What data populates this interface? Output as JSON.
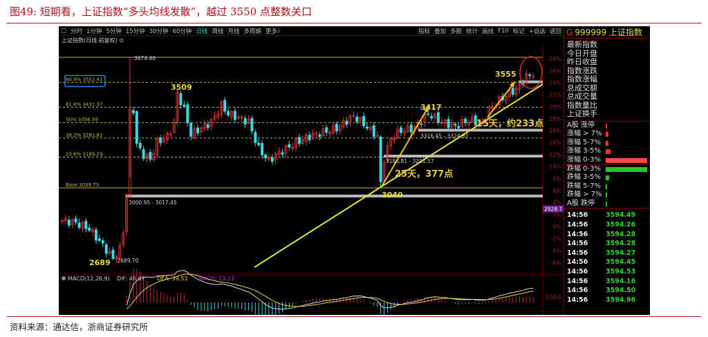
{
  "header": {
    "title": "图49:  短期看，上证指数“多头均线发散”，越过 3550 点整数关口"
  },
  "footer": {
    "source": "资料来源：通达信，浙商证券研究所"
  },
  "toolbar": {
    "left": [
      "□",
      "分时",
      "1分钟",
      "5分钟",
      "15分钟",
      "30分钟",
      "60分钟",
      "日线",
      "周线",
      "月线",
      "多周期",
      "更多〉"
    ],
    "active": "日线",
    "right": [
      "指标",
      "叠加",
      "多股",
      "统计",
      "画线",
      "F10",
      "标记",
      "+自选",
      "返回"
    ]
  },
  "chart_title": "上证指数(日线 前复权) ⊙",
  "colors": {
    "up": "#e0393b",
    "down": "#3cd6e6",
    "annot": "#e8d84a",
    "arrow": "#f0c020",
    "fib": "#c8b830",
    "macd_dif": "#dddddd",
    "macd_dea": "#e8d84a",
    "macd_bar": "#c03030",
    "highlight": "#1e88e5",
    "circle": "#d32f2f",
    "axis": "#c01010"
  },
  "chart_data": {
    "type": "candlestick",
    "note_values": "approximate daily closes (index points) anchored by trading-day index",
    "close_anchors": [
      [
        0,
        2880
      ],
      [
        4,
        2870
      ],
      [
        8,
        2840
      ],
      [
        12,
        2760
      ],
      [
        15,
        2695
      ],
      [
        17,
        2740
      ],
      [
        18,
        2830
      ],
      [
        19,
        3010
      ],
      [
        20,
        3550
      ],
      [
        21,
        3420
      ],
      [
        22,
        3250
      ],
      [
        24,
        3200
      ],
      [
        26,
        3180
      ],
      [
        28,
        3260
      ],
      [
        31,
        3290
      ],
      [
        33,
        3350
      ],
      [
        34,
        3500
      ],
      [
        36,
        3420
      ],
      [
        38,
        3300
      ],
      [
        41,
        3330
      ],
      [
        44,
        3360
      ],
      [
        47,
        3440
      ],
      [
        49,
        3400
      ],
      [
        52,
        3380
      ],
      [
        55,
        3360
      ],
      [
        58,
        3230
      ],
      [
        61,
        3170
      ],
      [
        63,
        3200
      ],
      [
        66,
        3230
      ],
      [
        69,
        3260
      ],
      [
        73,
        3290
      ],
      [
        77,
        3310
      ],
      [
        81,
        3330
      ],
      [
        86,
        3390
      ],
      [
        89,
        3350
      ],
      [
        93,
        3290
      ],
      [
        94,
        3060
      ],
      [
        95,
        3180
      ],
      [
        97,
        3280
      ],
      [
        100,
        3320
      ],
      [
        104,
        3330
      ],
      [
        108,
        3400
      ],
      [
        112,
        3360
      ],
      [
        116,
        3340
      ],
      [
        120,
        3370
      ],
      [
        124,
        3350
      ],
      [
        126,
        3420
      ],
      [
        128,
        3450
      ],
      [
        131,
        3490
      ],
      [
        134,
        3520
      ],
      [
        137,
        3580
      ],
      [
        139,
        3594
      ]
    ],
    "ylim": [
      2689.7,
      3674.4
    ],
    "right_axis_ticks": [
      "28%",
      "26%",
      "24%",
      "22%",
      "20%",
      "18%",
      "16%",
      "14%",
      "12%",
      "10%",
      "8%",
      "6%",
      "4%",
      "2%",
      "0%",
      "-2%",
      "-4%",
      "-6%"
    ],
    "axis_marker": "2928.7",
    "macd_axis_tick": "100.0",
    "fib_levels": [
      {
        "label": "80.9% 3552.41",
        "value": 3552.41,
        "highlight": true
      },
      {
        "label": "61.8% 3431.37",
        "value": 3431.37
      },
      {
        "label": "50% 3356.59",
        "value": 3356.59
      },
      {
        "label": "38.2% 3281.81",
        "value": 3281.81
      },
      {
        "label": "23.6% 3189.29",
        "value": 3189.29
      },
      {
        "label": "Base 3039.73",
        "value": 3039.73,
        "solid": true
      }
    ],
    "high": {
      "label": "3674.40",
      "value": 3674.4
    },
    "low": {
      "label": "2689.70",
      "value": 2689.7
    },
    "gaps": [
      {
        "label": "3000.95 - 3017.45",
        "value": 3009
      },
      {
        "label": "3186.81 - 3201.57",
        "value": 3194
      },
      {
        "label": "3316.45 - 3324.81",
        "value": 3320
      }
    ],
    "annotations": [
      "3509",
      "3417",
      "3555",
      "3040",
      "2689",
      "15天，约233点",
      "25天，377点"
    ],
    "macd": {
      "label": "MACD(12,26,9)",
      "dif": "DIF: 46.07",
      "dea": "DEA: 39.51",
      "macd": "MACD: 13.13"
    }
  },
  "panel": {
    "code": "999999",
    "name": "上证指数",
    "g": "G",
    "fields": [
      "最新指数",
      "今日开盘",
      "昨日收盘",
      "指数涨跌",
      "指数涨幅",
      "总成交额",
      "总成交量",
      "指数量比",
      "上证换手"
    ],
    "breadth": [
      {
        "label": "A股 涨停",
        "value": 0.02,
        "color": "#e33"
      },
      {
        "label": "涨幅 > 7%",
        "value": 0.06,
        "color": "#e33"
      },
      {
        "label": "涨幅 5-7%",
        "value": 0.06,
        "color": "#e33"
      },
      {
        "label": "涨幅 3-5%",
        "value": 0.12,
        "color": "#e33"
      },
      {
        "label": "涨幅 0-3%",
        "value": 1.0,
        "color": "#f24a4a"
      },
      {
        "label": "跌幅 0-3%",
        "value": 1.0,
        "color": "#22c922"
      },
      {
        "label": "跌幅 3-5%",
        "value": 0.08,
        "color": "#22c922"
      },
      {
        "label": "跌幅 5-7%",
        "value": 0.04,
        "color": "#22c922"
      },
      {
        "label": "跌幅 > 7%",
        "value": 0.02,
        "color": "#22c922"
      },
      {
        "label": "A股 跌停",
        "value": 0.02,
        "color": "#22c922"
      }
    ],
    "ticks": [
      {
        "t": "14:56",
        "p": "3594.49"
      },
      {
        "t": "14:56",
        "p": "3594.26"
      },
      {
        "t": "14:56",
        "p": "3594.28"
      },
      {
        "t": "14:56",
        "p": "3594.28"
      },
      {
        "t": "14:56",
        "p": "3594.27"
      },
      {
        "t": "14:56",
        "p": "3594.45"
      },
      {
        "t": "14:56",
        "p": "3594.53"
      },
      {
        "t": "14:56",
        "p": "3594.16"
      },
      {
        "t": "14:56",
        "p": "3594.50"
      },
      {
        "t": "14:56",
        "p": "3594.96"
      }
    ]
  }
}
